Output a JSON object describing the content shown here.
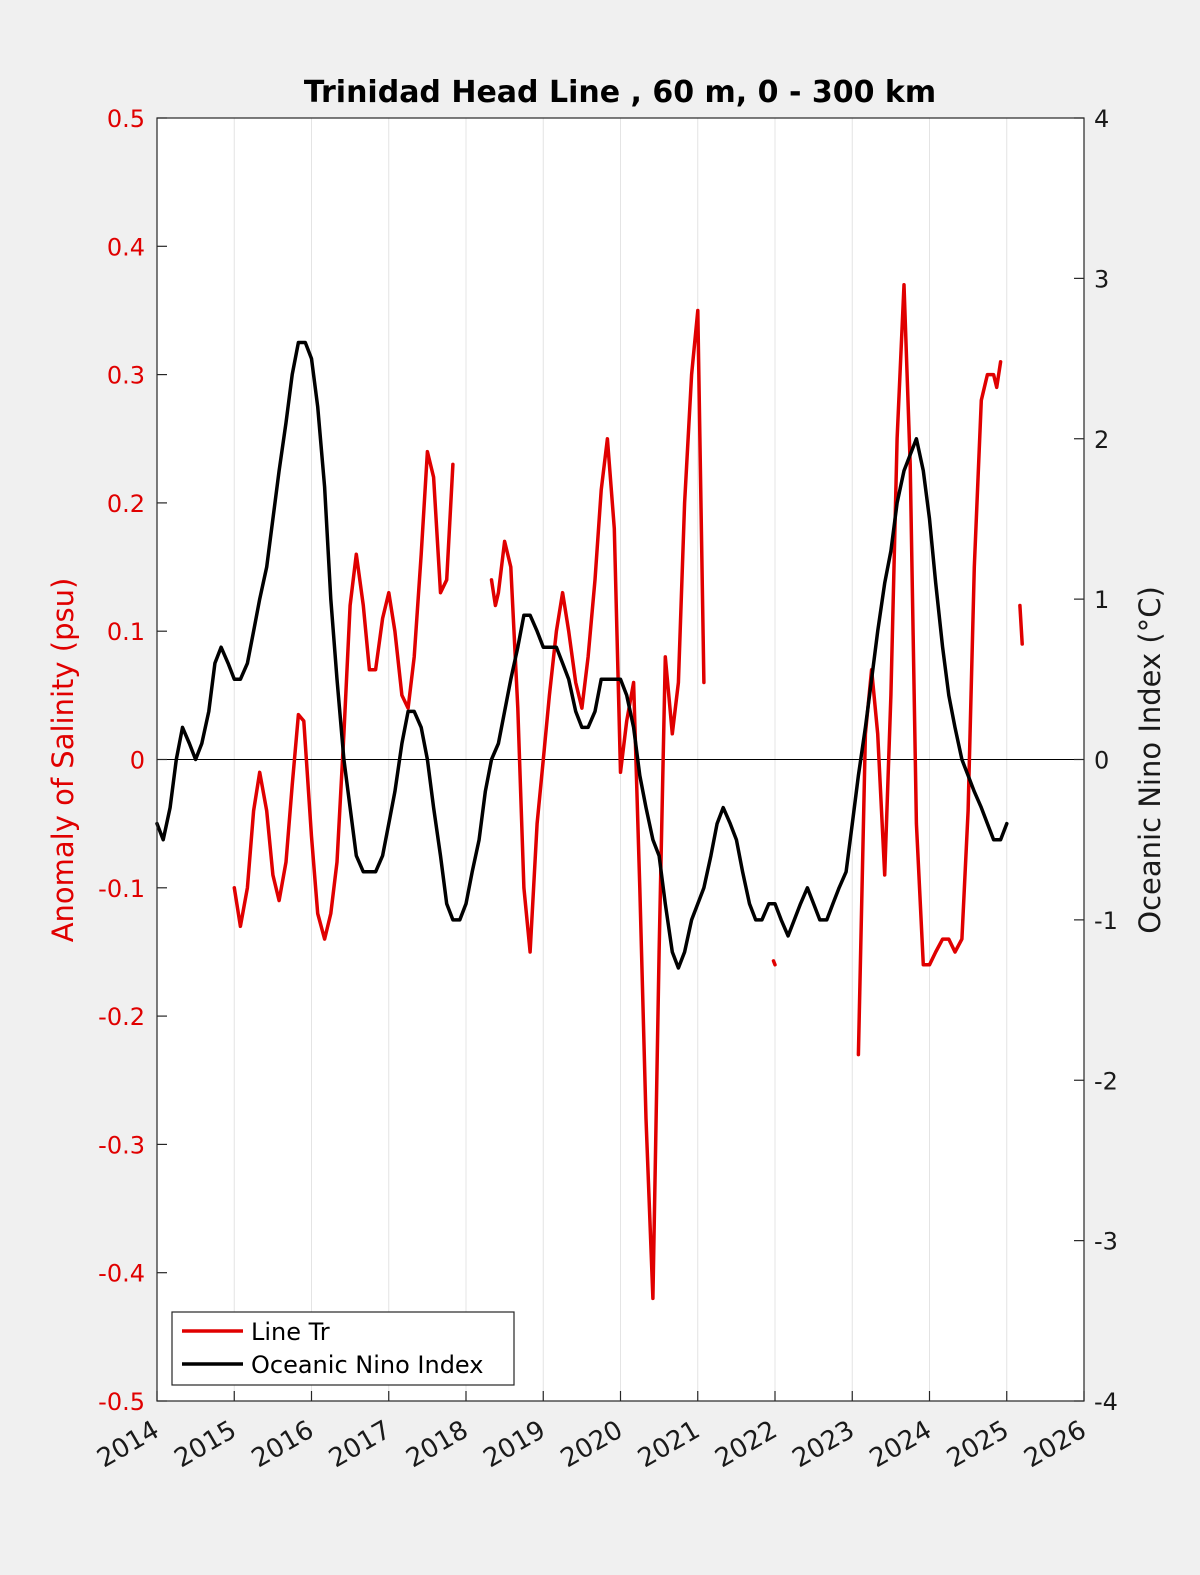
{
  "chart_data": {
    "type": "line",
    "title": "Trinidad Head Line , 60 m, 0 - 300 km",
    "ylabel_left": "Anomaly of Salinity (psu)",
    "ylabel_right": "Oceanic Nino Index (°C)",
    "xlabel": "",
    "xlim": [
      2014,
      2026
    ],
    "ylim_left": [
      -0.5,
      0.5
    ],
    "ylim_right": [
      -4,
      4
    ],
    "xticks": [
      "2014",
      "2015",
      "2016",
      "2017",
      "2018",
      "2019",
      "2020",
      "2021",
      "2022",
      "2023",
      "2024",
      "2025",
      "2026"
    ],
    "yticks_left": [
      "0.5",
      "0.4",
      "0.3",
      "0.2",
      "0.1",
      "0",
      "-0.1",
      "-0.2",
      "-0.3",
      "-0.4",
      "-0.5"
    ],
    "yticks_right": [
      "4",
      "3",
      "2",
      "1",
      "0",
      "-1",
      "-2",
      "-3",
      "-4"
    ],
    "grid": "vertical",
    "legend_position": "bottom-left",
    "colors": {
      "salinity": "#e00000",
      "oni": "#000000",
      "left_axis": "#e00000"
    },
    "series": [
      {
        "name": "Line Tr",
        "axis": "left",
        "color": "#e00000",
        "segments": [
          [
            [
              2015.0,
              -0.1
            ],
            [
              2015.08,
              -0.13
            ],
            [
              2015.17,
              -0.1
            ],
            [
              2015.25,
              -0.04
            ],
            [
              2015.33,
              -0.01
            ],
            [
              2015.42,
              -0.04
            ],
            [
              2015.5,
              -0.09
            ],
            [
              2015.58,
              -0.11
            ],
            [
              2015.67,
              -0.08
            ],
            [
              2015.75,
              -0.02
            ],
            [
              2015.83,
              0.035
            ],
            [
              2015.9,
              0.03
            ],
            [
              2016.0,
              -0.06
            ],
            [
              2016.08,
              -0.12
            ],
            [
              2016.17,
              -0.14
            ],
            [
              2016.25,
              -0.12
            ],
            [
              2016.33,
              -0.08
            ],
            [
              2016.42,
              0.02
            ],
            [
              2016.5,
              0.12
            ],
            [
              2016.58,
              0.16
            ],
            [
              2016.67,
              0.12
            ],
            [
              2016.75,
              0.07
            ],
            [
              2016.83,
              0.07
            ],
            [
              2016.92,
              0.11
            ],
            [
              2017.0,
              0.13
            ],
            [
              2017.08,
              0.1
            ],
            [
              2017.17,
              0.05
            ],
            [
              2017.25,
              0.04
            ],
            [
              2017.33,
              0.08
            ],
            [
              2017.42,
              0.16
            ],
            [
              2017.5,
              0.24
            ],
            [
              2017.58,
              0.22
            ],
            [
              2017.67,
              0.13
            ],
            [
              2017.75,
              0.14
            ],
            [
              2017.83,
              0.23
            ]
          ],
          [
            [
              2018.33,
              0.14
            ],
            [
              2018.38,
              0.12
            ],
            [
              2018.42,
              0.13
            ],
            [
              2018.5,
              0.17
            ],
            [
              2018.58,
              0.15
            ],
            [
              2018.67,
              0.04
            ],
            [
              2018.75,
              -0.1
            ],
            [
              2018.83,
              -0.15
            ],
            [
              2018.92,
              -0.05
            ],
            [
              2019.0,
              0.0
            ],
            [
              2019.08,
              0.05
            ],
            [
              2019.17,
              0.1
            ],
            [
              2019.25,
              0.13
            ],
            [
              2019.33,
              0.1
            ],
            [
              2019.42,
              0.06
            ],
            [
              2019.5,
              0.04
            ],
            [
              2019.58,
              0.08
            ],
            [
              2019.67,
              0.14
            ],
            [
              2019.75,
              0.21
            ],
            [
              2019.83,
              0.25
            ],
            [
              2019.92,
              0.18
            ],
            [
              2020.0,
              -0.01
            ],
            [
              2020.08,
              0.03
            ],
            [
              2020.17,
              0.06
            ],
            [
              2020.25,
              -0.1
            ],
            [
              2020.33,
              -0.28
            ],
            [
              2020.42,
              -0.42
            ],
            [
              2020.5,
              -0.15
            ],
            [
              2020.58,
              0.08
            ],
            [
              2020.67,
              0.02
            ],
            [
              2020.75,
              0.06
            ],
            [
              2020.83,
              0.2
            ],
            [
              2020.92,
              0.3
            ],
            [
              2021.0,
              0.35
            ],
            [
              2021.08,
              0.06
            ]
          ],
          [
            [
              2021.98,
              -0.157
            ],
            [
              2022.0,
              -0.16
            ]
          ],
          [
            [
              2023.08,
              -0.23
            ],
            [
              2023.17,
              0.02
            ],
            [
              2023.25,
              0.07
            ],
            [
              2023.33,
              0.02
            ],
            [
              2023.42,
              -0.09
            ],
            [
              2023.5,
              0.05
            ],
            [
              2023.58,
              0.25
            ],
            [
              2023.67,
              0.37
            ],
            [
              2023.75,
              0.23
            ],
            [
              2023.83,
              -0.05
            ],
            [
              2023.92,
              -0.16
            ],
            [
              2024.0,
              -0.16
            ],
            [
              2024.08,
              -0.15
            ],
            [
              2024.17,
              -0.14
            ],
            [
              2024.25,
              -0.14
            ],
            [
              2024.33,
              -0.15
            ],
            [
              2024.42,
              -0.14
            ],
            [
              2024.5,
              -0.04
            ],
            [
              2024.58,
              0.15
            ],
            [
              2024.67,
              0.28
            ],
            [
              2024.75,
              0.3
            ],
            [
              2024.83,
              0.3
            ],
            [
              2024.87,
              0.29
            ],
            [
              2024.92,
              0.31
            ]
          ],
          [
            [
              2025.17,
              0.12
            ],
            [
              2025.2,
              0.09
            ]
          ]
        ]
      },
      {
        "name": "Oceanic Nino Index",
        "axis": "right",
        "color": "#000000",
        "segments": [
          [
            [
              2014.0,
              -0.4
            ],
            [
              2014.08,
              -0.5
            ],
            [
              2014.17,
              -0.3
            ],
            [
              2014.25,
              0.0
            ],
            [
              2014.33,
              0.2
            ],
            [
              2014.42,
              0.1
            ],
            [
              2014.5,
              0.0
            ],
            [
              2014.58,
              0.1
            ],
            [
              2014.67,
              0.3
            ],
            [
              2014.75,
              0.6
            ],
            [
              2014.83,
              0.7
            ],
            [
              2014.92,
              0.6
            ],
            [
              2015.0,
              0.5
            ],
            [
              2015.08,
              0.5
            ],
            [
              2015.17,
              0.6
            ],
            [
              2015.25,
              0.8
            ],
            [
              2015.33,
              1.0
            ],
            [
              2015.42,
              1.2
            ],
            [
              2015.5,
              1.5
            ],
            [
              2015.58,
              1.8
            ],
            [
              2015.67,
              2.1
            ],
            [
              2015.75,
              2.4
            ],
            [
              2015.83,
              2.6
            ],
            [
              2015.92,
              2.6
            ],
            [
              2016.0,
              2.5
            ],
            [
              2016.08,
              2.2
            ],
            [
              2016.17,
              1.7
            ],
            [
              2016.25,
              1.0
            ],
            [
              2016.33,
              0.5
            ],
            [
              2016.42,
              0.0
            ],
            [
              2016.5,
              -0.3
            ],
            [
              2016.58,
              -0.6
            ],
            [
              2016.67,
              -0.7
            ],
            [
              2016.75,
              -0.7
            ],
            [
              2016.83,
              -0.7
            ],
            [
              2016.92,
              -0.6
            ],
            [
              2017.0,
              -0.4
            ],
            [
              2017.08,
              -0.2
            ],
            [
              2017.17,
              0.1
            ],
            [
              2017.25,
              0.3
            ],
            [
              2017.33,
              0.3
            ],
            [
              2017.42,
              0.2
            ],
            [
              2017.5,
              0.0
            ],
            [
              2017.58,
              -0.3
            ],
            [
              2017.67,
              -0.6
            ],
            [
              2017.75,
              -0.9
            ],
            [
              2017.83,
              -1.0
            ],
            [
              2017.92,
              -1.0
            ],
            [
              2018.0,
              -0.9
            ],
            [
              2018.08,
              -0.7
            ],
            [
              2018.17,
              -0.5
            ],
            [
              2018.25,
              -0.2
            ],
            [
              2018.33,
              0.0
            ],
            [
              2018.42,
              0.1
            ],
            [
              2018.5,
              0.3
            ],
            [
              2018.58,
              0.5
            ],
            [
              2018.67,
              0.7
            ],
            [
              2018.75,
              0.9
            ],
            [
              2018.83,
              0.9
            ],
            [
              2018.92,
              0.8
            ],
            [
              2019.0,
              0.7
            ],
            [
              2019.08,
              0.7
            ],
            [
              2019.17,
              0.7
            ],
            [
              2019.25,
              0.6
            ],
            [
              2019.33,
              0.5
            ],
            [
              2019.42,
              0.3
            ],
            [
              2019.5,
              0.2
            ],
            [
              2019.58,
              0.2
            ],
            [
              2019.67,
              0.3
            ],
            [
              2019.75,
              0.5
            ],
            [
              2019.83,
              0.5
            ],
            [
              2019.92,
              0.5
            ],
            [
              2020.0,
              0.5
            ],
            [
              2020.08,
              0.4
            ],
            [
              2020.17,
              0.2
            ],
            [
              2020.25,
              -0.1
            ],
            [
              2020.33,
              -0.3
            ],
            [
              2020.42,
              -0.5
            ],
            [
              2020.5,
              -0.6
            ],
            [
              2020.58,
              -0.9
            ],
            [
              2020.67,
              -1.2
            ],
            [
              2020.75,
              -1.3
            ],
            [
              2020.83,
              -1.2
            ],
            [
              2020.92,
              -1.0
            ],
            [
              2021.0,
              -0.9
            ],
            [
              2021.08,
              -0.8
            ],
            [
              2021.17,
              -0.6
            ],
            [
              2021.25,
              -0.4
            ],
            [
              2021.33,
              -0.3
            ],
            [
              2021.42,
              -0.4
            ],
            [
              2021.5,
              -0.5
            ],
            [
              2021.58,
              -0.7
            ],
            [
              2021.67,
              -0.9
            ],
            [
              2021.75,
              -1.0
            ],
            [
              2021.83,
              -1.0
            ],
            [
              2021.92,
              -0.9
            ],
            [
              2022.0,
              -0.9
            ],
            [
              2022.08,
              -1.0
            ],
            [
              2022.17,
              -1.1
            ],
            [
              2022.25,
              -1.0
            ],
            [
              2022.33,
              -0.9
            ],
            [
              2022.42,
              -0.8
            ],
            [
              2022.5,
              -0.9
            ],
            [
              2022.58,
              -1.0
            ],
            [
              2022.67,
              -1.0
            ],
            [
              2022.75,
              -0.9
            ],
            [
              2022.83,
              -0.8
            ],
            [
              2022.92,
              -0.7
            ],
            [
              2023.0,
              -0.4
            ],
            [
              2023.08,
              -0.1
            ],
            [
              2023.17,
              0.2
            ],
            [
              2023.25,
              0.5
            ],
            [
              2023.33,
              0.8
            ],
            [
              2023.42,
              1.1
            ],
            [
              2023.5,
              1.3
            ],
            [
              2023.58,
              1.6
            ],
            [
              2023.67,
              1.8
            ],
            [
              2023.75,
              1.9
            ],
            [
              2023.83,
              2.0
            ],
            [
              2023.92,
              1.8
            ],
            [
              2024.0,
              1.5
            ],
            [
              2024.08,
              1.1
            ],
            [
              2024.17,
              0.7
            ],
            [
              2024.25,
              0.4
            ],
            [
              2024.33,
              0.2
            ],
            [
              2024.42,
              0.0
            ],
            [
              2024.5,
              -0.1
            ],
            [
              2024.58,
              -0.2
            ],
            [
              2024.67,
              -0.3
            ],
            [
              2024.75,
              -0.4
            ],
            [
              2024.83,
              -0.5
            ],
            [
              2024.92,
              -0.5
            ],
            [
              2025.0,
              -0.4
            ]
          ]
        ]
      }
    ]
  },
  "legend": {
    "items": [
      "Line Tr",
      "Oceanic Nino Index"
    ]
  }
}
